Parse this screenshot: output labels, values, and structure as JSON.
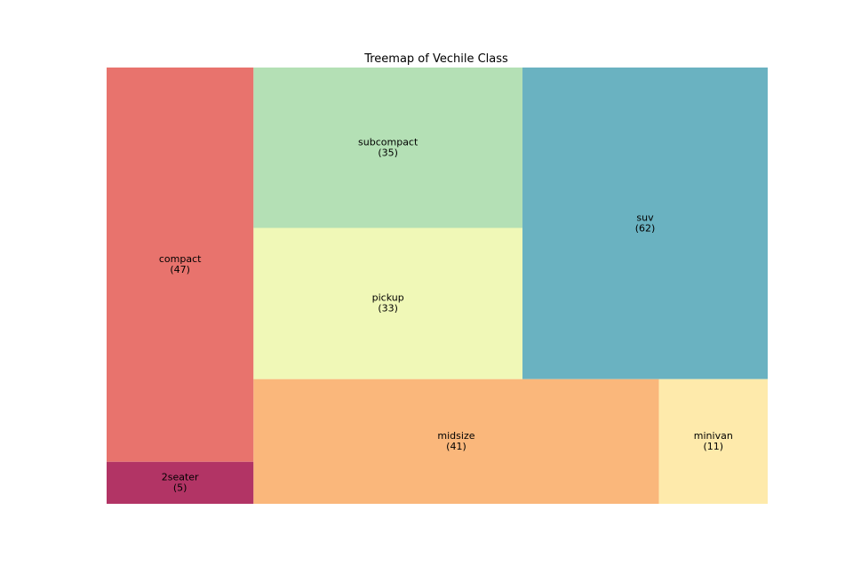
{
  "chart_data": {
    "type": "treemap",
    "title": "Treemap of Vechile Class",
    "xlabel": "",
    "ylabel": "",
    "grid": false,
    "cells": [
      {
        "name": "2seater",
        "count": 5,
        "color": "#b23465"
      },
      {
        "name": "compact",
        "count": 47,
        "color": "#e8736d"
      },
      {
        "name": "midsize",
        "count": 41,
        "color": "#fab77b"
      },
      {
        "name": "minivan",
        "count": 11,
        "color": "#feeaab"
      },
      {
        "name": "pickup",
        "count": 33,
        "color": "#f0f8b7"
      },
      {
        "name": "subcompact",
        "count": 35,
        "color": "#b4e0b5"
      },
      {
        "name": "suv",
        "count": 62,
        "color": "#6ab2c1"
      }
    ]
  }
}
